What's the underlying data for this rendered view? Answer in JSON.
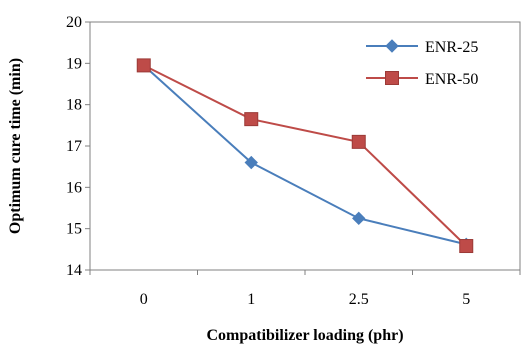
{
  "chart_data": {
    "type": "line",
    "title": "",
    "xlabel": "Compatibilizer loading (phr)",
    "ylabel": "Optimum cure time (min)",
    "categories": [
      "0",
      "1",
      "2.5",
      "5"
    ],
    "ylim": [
      14,
      20
    ],
    "yticks": [
      14,
      15,
      16,
      17,
      18,
      19,
      20
    ],
    "grid": false,
    "legend_position": "top-right",
    "series": [
      {
        "name": "ENR-25",
        "color": "#4a7ebb",
        "marker": "diamond",
        "values": [
          18.95,
          16.6,
          15.25,
          14.62
        ]
      },
      {
        "name": "ENR-50",
        "color": "#be4b48",
        "marker": "square",
        "values": [
          18.95,
          17.65,
          17.1,
          14.58
        ]
      }
    ]
  }
}
